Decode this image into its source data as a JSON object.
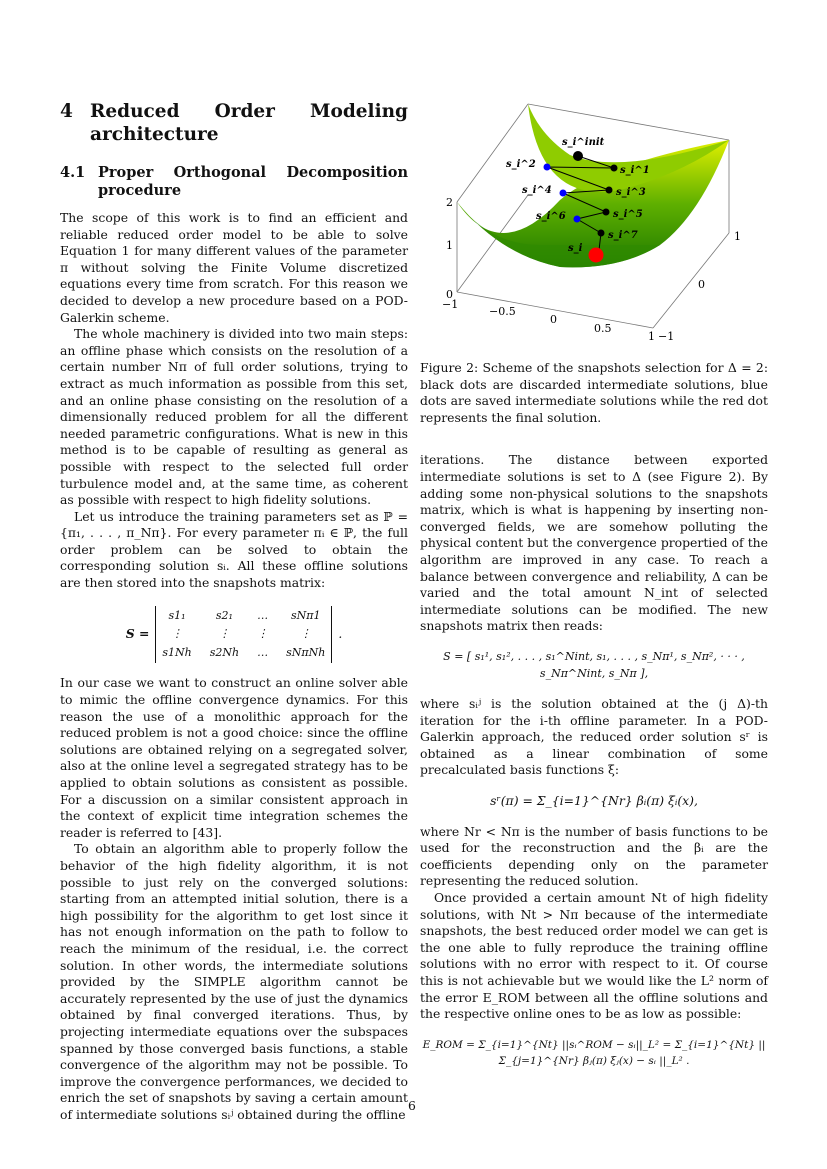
{
  "section": {
    "number": "4",
    "title": "Reduced Order Modeling architecture"
  },
  "subsection": {
    "number": "4.1",
    "title": "Proper Orthogonal Decomposition procedure"
  },
  "left_paragraphs": [
    "The scope of this work is to find an efficient and reliable reduced order model to be able to solve Equation 1 for many different values of the parameter π without solving the Finite Volume discretized equations every time from scratch. For this reason we decided to develop a new procedure based on a POD-Galerkin scheme.",
    "The whole machinery is divided into two main steps: an offline phase which consists on the resolution of a certain number Nπ of full order solutions, trying to extract as much information as possible from this set, and an online phase consisting on the resolution of a dimensionally reduced problem for all the different needed parametric configurations. What is new in this method is to be capable of resulting as general as possible with respect to the selected full order turbulence model and, at the same time, as coherent as possible with respect to high fidelity solutions.",
    "Let us introduce the training parameters set as ℙ = {π₁, . . . , π_Nπ}. For every parameter πᵢ ∈ ℙ, the full order problem can be solved to obtain the corresponding solution sᵢ. All these offline solutions are then stored into the snapshots matrix:"
  ],
  "matrix": {
    "lhs": "S =",
    "cells": [
      "s1₁",
      "s2₁",
      "…",
      "sNπ1",
      "⋮",
      "⋮",
      "⋮",
      "⋮",
      "s1Nh",
      "s2Nh",
      "…",
      "sNπNh"
    ],
    "end": "."
  },
  "left_paragraphs_2": [
    "In our case we want to construct an online solver able to mimic the offline convergence dynamics. For this reason the use of a monolithic approach for the reduced problem is not a good choice: since the offline solutions are obtained relying on a segregated solver, also at the online level a segregated strategy has to be applied to obtain solutions as consistent as possible. For a discussion on a similar consistent approach in the context of explicit time integration schemes the reader is referred to [43].",
    "To obtain an algorithm able to properly follow the behavior of the high fidelity algorithm, it is not possible to just rely on the converged solutions: starting from an attempted initial solution, there is a high possibility for the algorithm to get lost since it has not enough information on the path to follow to reach the minimum of the residual, i.e. the correct solution. In other words, the intermediate solutions provided by the SIMPLE algorithm cannot be accurately represented by the use of just the dynamics obtained by final converged iterations. Thus, by projecting intermediate equations over the subspaces spanned by those converged basis functions, a stable convergence of the algorithm may not be possible. To improve the convergence performances, we decided to enrich the set of snapshots by saving a certain amount of intermediate solutions sᵢʲ obtained during the offline"
  ],
  "figure": {
    "caption": "Figure 2: Scheme of the snapshots selection for Δ = 2: black dots are discarded intermediate solutions, blue dots are saved intermediate solutions while the red dot represents the final solution.",
    "z_ticks": [
      "0",
      "1",
      "2"
    ],
    "x_ticks": [
      "−1",
      "−0.5",
      "0",
      "0.5",
      "1"
    ],
    "y_ticks": [
      "−1",
      "0",
      "1"
    ],
    "labels": [
      "s_i^init",
      "s_i^1",
      "s_i^2",
      "s_i^3",
      "s_i^4",
      "s_i^5",
      "s_i^6",
      "s_i^7",
      "s_i"
    ],
    "colors": {
      "discarded": "#000000",
      "saved": "#0000ff",
      "final": "#ff0000",
      "surface": "#4aa000"
    }
  },
  "right_paragraphs": [
    "iterations. The distance between exported intermediate solutions is set to Δ (see Figure 2). By adding some non-physical solutions to the snapshots matrix, which is what is happening by inserting non-converged fields, we are somehow polluting the physical content but the convergence propertied of the algorithm are improved in any case. To reach a balance between convergence and reliability, Δ can be varied and the total amount N_int of selected intermediate solutions can be modified. The new snapshots matrix then reads:"
  ],
  "eq_snapshots": "S = [ s₁¹, s₁², . . . , s₁^Nint, s₁, . . . , s_Nπ¹, s_Nπ², · · · , s_Nπ^Nint, s_Nπ ],",
  "right_paragraphs_2": [
    "where sᵢʲ is the solution obtained at the (j Δ)-th iteration for the i-th offline parameter. In a POD-Galerkin approach, the reduced order solution sʳ is obtained as a linear combination of some precalculated basis functions ξ:"
  ],
  "eq_reduced": "sʳ(π) = Σ_{i=1}^{Nr} βᵢ(π) ξᵢ(x),",
  "right_paragraphs_3": [
    "where Nr < Nπ is the number of basis functions to be used for the reconstruction and the βᵢ are the coefficients depending only on the parameter representing the reduced solution.",
    "Once provided a certain amount Nt of high fidelity solutions, with Nt > Nπ because of the intermediate snapshots, the best reduced order model we can get is the one able to fully reproduce the training offline solutions with no error with respect to it. Of course this is not achievable but we would like the L² norm of the error E_ROM between all the offline solutions and the respective online ones to be as low as possible:"
  ],
  "eq_error": "E_ROM = Σ_{i=1}^{Nt} ||sᵢ^ROM − sᵢ||_L² = Σ_{i=1}^{Nt} || Σ_{j=1}^{Nr} βⱼ(π) ξⱼ(x) − sᵢ ||_L² .",
  "page_number": "6"
}
